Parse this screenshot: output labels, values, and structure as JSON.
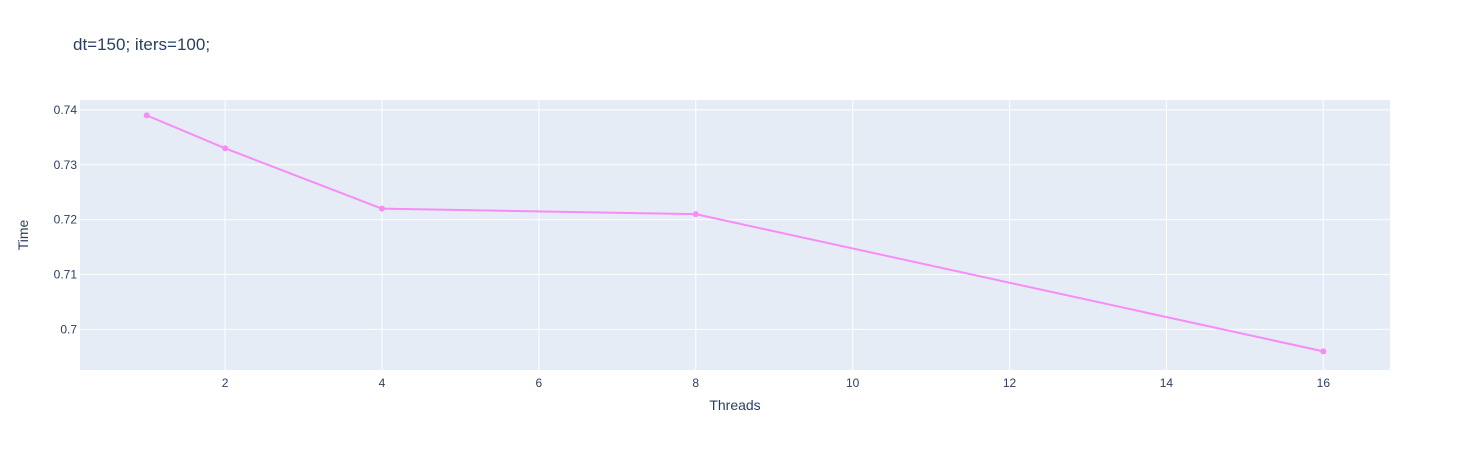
{
  "chart_data": {
    "type": "line",
    "title": "dt=150; iters=100;",
    "xlabel": "Threads",
    "ylabel": "Time",
    "x": [
      1,
      2,
      4,
      8,
      16
    ],
    "series": [
      {
        "values": [
          0.739,
          0.733,
          0.722,
          0.721,
          0.696
        ],
        "color": "#f68cf6"
      }
    ],
    "xlim": [
      0.15,
      16.85
    ],
    "ylim": [
      0.6926,
      0.7418
    ],
    "x_ticks": [
      2,
      4,
      6,
      8,
      10,
      12,
      14,
      16
    ],
    "x_tick_labels": [
      "2",
      "4",
      "6",
      "8",
      "10",
      "12",
      "14",
      "16"
    ],
    "y_ticks": [
      0.7,
      0.71,
      0.72,
      0.73,
      0.74
    ],
    "y_tick_labels": [
      "0.7",
      "0.71",
      "0.72",
      "0.73",
      "0.74"
    ],
    "grid": true,
    "legend": "none",
    "colors": {
      "plot_background": "#e5ecf6",
      "grid": "#ffffff",
      "text": "#2a3f5f"
    }
  }
}
